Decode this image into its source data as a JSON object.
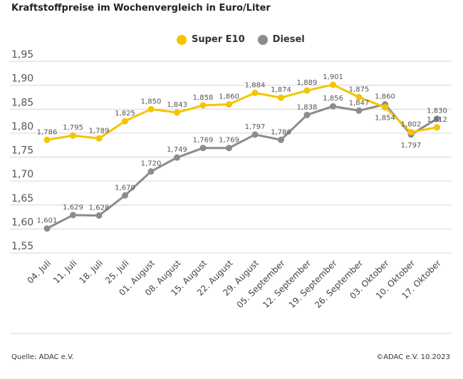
{
  "title": "Kraftstoffpreise im Wochenvergleich in Euro/Liter",
  "source": "Quelle: ADAC e.V.",
  "copyright": "©ADAC e.V. 10.2023",
  "chart_data": {
    "type": "line",
    "title": "Kraftstoffpreise im Wochenvergleich in Euro/Liter",
    "categories": [
      "04. Juli",
      "11. Juli",
      "18. Juli",
      "25. Juli",
      "01. August",
      "08. August",
      "15. August",
      "22. August",
      "29. August",
      "05. September",
      "12. September",
      "19. September",
      "26. September",
      "03. Oktober",
      "10. Oktober",
      "17. Oktober"
    ],
    "series": [
      {
        "name": "Super E10",
        "color": "#f5c400",
        "values": [
          1.786,
          1.795,
          1.789,
          1.825,
          1.85,
          1.843,
          1.858,
          1.86,
          1.884,
          1.874,
          1.889,
          1.901,
          1.875,
          1.854,
          1.802,
          1.812
        ],
        "labels": [
          "1,786",
          "1,795",
          "1,789",
          "1,825",
          "1,850",
          "1,843",
          "1,858",
          "1,860",
          "1,884",
          "1,874",
          "1,889",
          "1,901",
          "1,875",
          "1,854",
          "1,802",
          "1,812"
        ]
      },
      {
        "name": "Diesel",
        "color": "#8c8c8c",
        "values": [
          1.601,
          1.629,
          1.628,
          1.67,
          1.72,
          1.749,
          1.769,
          1.769,
          1.797,
          1.786,
          1.838,
          1.856,
          1.847,
          1.86,
          1.797,
          1.83
        ],
        "labels": [
          "1,601",
          "1,629",
          "1,628",
          "1,670",
          "1,720",
          "1,749",
          "1,769",
          "1,769",
          "1,797",
          "1,786",
          "1,838",
          "1,856",
          "1,847",
          "1,860",
          "1,797",
          "1,830"
        ]
      }
    ],
    "yticks": [
      "1,55",
      "1,60",
      "1,65",
      "1,70",
      "1,75",
      "1,80",
      "1,85",
      "1,90",
      "1,95"
    ],
    "ylim": [
      1.55,
      1.95
    ],
    "grid": true,
    "legend": "top-center"
  }
}
